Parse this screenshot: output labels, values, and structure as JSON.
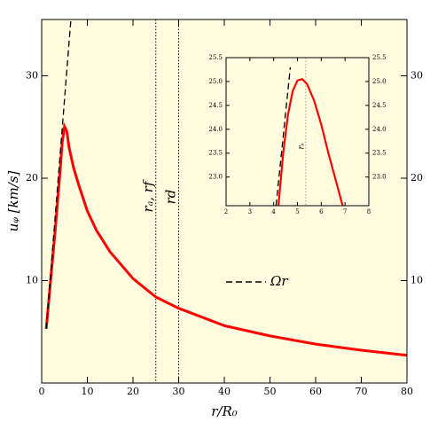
{
  "chart_data": [
    {
      "type": "line",
      "xlabel": "r/R₀",
      "ylabel": "uᵩ [km/s]",
      "background": "#fffce0",
      "xlim": [
        0,
        80
      ],
      "ylim": [
        0,
        35.5
      ],
      "xticks": [
        0,
        10,
        20,
        30,
        40,
        50,
        60,
        70,
        80
      ],
      "yticks": [
        10,
        20,
        30
      ],
      "series": [
        {
          "color": "#ff0000",
          "x": [
            1,
            2,
            3,
            4,
            4.5,
            5,
            5.5,
            6,
            7,
            8,
            10,
            12,
            15,
            20,
            25,
            30,
            40,
            50,
            60,
            70,
            80
          ],
          "values": [
            5.3,
            10.2,
            15.1,
            20.5,
            23.5,
            25.05,
            24.6,
            23,
            21,
            19.5,
            16.8,
            14.9,
            12.8,
            10.2,
            8.4,
            7.3,
            5.6,
            4.6,
            3.8,
            3.2,
            2.7
          ]
        },
        {
          "name": "Ωr",
          "color": "#000000",
          "dashed": true,
          "x": [
            1,
            6.4
          ],
          "values": [
            5.3,
            35.5
          ]
        }
      ],
      "vlines": [
        {
          "x": 25,
          "label": "rₐ, rf"
        },
        {
          "x": 30,
          "label": "rd"
        }
      ]
    },
    {
      "type": "line",
      "background": "#fffce0",
      "xlim": [
        2,
        8
      ],
      "ylim": [
        22.4,
        25.5
      ],
      "xticks": [
        2,
        3,
        4,
        5,
        6,
        7,
        8
      ],
      "yticks": [
        {
          "value": 23,
          "label": "23.0"
        },
        23.5,
        {
          "value": 24,
          "label": "24.0"
        },
        24.5,
        {
          "value": 25,
          "label": "25.0"
        },
        25.5
      ],
      "series": [
        {
          "color": "#ff0000",
          "x": [
            4.2,
            4.4,
            4.6,
            4.8,
            5.0,
            5.2,
            5.4,
            5.7,
            6.0,
            6.3,
            6.6,
            6.9
          ],
          "values": [
            22.4,
            23.5,
            24.3,
            24.8,
            25.02,
            25.05,
            24.95,
            24.6,
            24.1,
            23.5,
            22.95,
            22.4
          ]
        },
        {
          "color": "#000000",
          "dashed": true,
          "x": [
            4.1,
            4.7
          ],
          "values": [
            22.4,
            25.3
          ]
        }
      ],
      "vlines": [
        {
          "x": 5.35,
          "label": "rₛ"
        }
      ]
    }
  ]
}
